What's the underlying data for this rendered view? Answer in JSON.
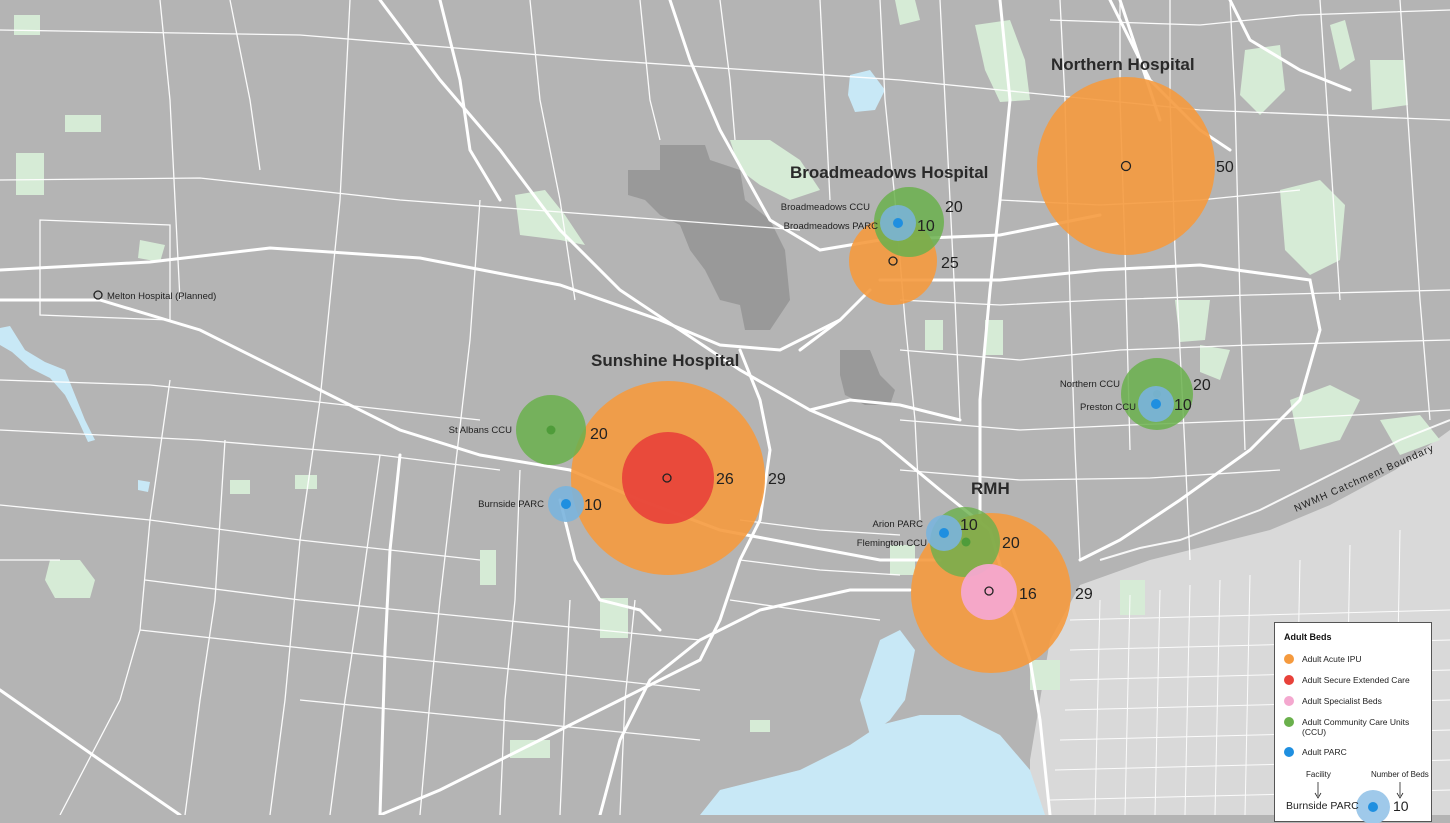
{
  "colors": {
    "land": "#b4b4b4",
    "road": "#ffffff",
    "park": "#d6ebd6",
    "water": "#c8e8f6",
    "urban_dark": "#999999",
    "urban_light": "#d9d9d9",
    "acute": "#f59a3e",
    "secure": "#e8413a",
    "specialist": "#f4a8cf",
    "ccu": "#6ab04c",
    "parc": "#1f8fe0"
  },
  "hospitals": {
    "northern": "Northern Hospital",
    "broadmeadows": "Broadmeadows Hospital",
    "sunshine": "Sunshine Hospital",
    "rmh": "RMH"
  },
  "facilities": {
    "melton": "Melton Hospital (Planned)",
    "broadmeadows_ccu": "Broadmeadows CCU",
    "broadmeadows_parc": "Broadmeadows PARC",
    "st_albans_ccu": "St Albans CCU",
    "burnside_parc": "Burnside PARC",
    "northern_ccu": "Northern CCU",
    "preston_ccu": "Preston CCU",
    "arion_parc": "Arion PARC",
    "flemington_ccu": "Flemington CCU"
  },
  "beds": {
    "northern_acute": "50",
    "broadmeadows_ccu": "20",
    "broadmeadows_parc": "10",
    "broadmeadows_acute": "25",
    "st_albans_ccu": "20",
    "burnside_parc": "10",
    "sunshine_secure": "26",
    "sunshine_acute": "29",
    "northern_ccu": "20",
    "preston_ccu": "10",
    "arion_parc": "10",
    "flemington_ccu": "20",
    "rmh_specialist": "16",
    "rmh_acute": "29"
  },
  "boundary_label": "NWMH Catchment Boundary",
  "legend": {
    "title": "Adult Beds",
    "items": [
      {
        "label": "Adult Acute IPU",
        "color": "#f59a3e"
      },
      {
        "label": "Adult Secure Extended Care",
        "color": "#e8413a"
      },
      {
        "label": "Adult Specialist Beds",
        "color": "#f4a8cf"
      },
      {
        "label": "Adult Community Care Units (CCU)",
        "color": "#6ab04c"
      },
      {
        "label": "Adult PARC",
        "color": "#1f8fe0"
      }
    ],
    "facility_caption": "Facility",
    "beds_caption": "Number of Beds",
    "example_name": "Burnside PARC",
    "example_value": "10"
  }
}
